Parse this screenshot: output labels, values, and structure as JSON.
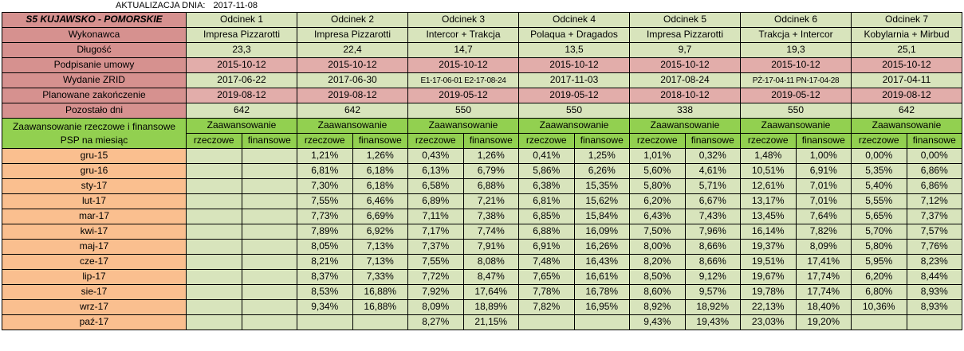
{
  "update_note": {
    "label": "AKTUALIZACJA DNIA:",
    "date": "2017-11-08"
  },
  "colors": {
    "rose": "#d6918f",
    "pink": "#e2adaa",
    "bright-green": "#92d050",
    "pale-green": "#d8e4bc",
    "peach": "#fabf8f",
    "border": "#000000"
  },
  "table": {
    "title": "S5 KUJAWSKO - POMORSKIE",
    "sections": [
      "Odcinek 1",
      "Odcinek 2",
      "Odcinek 3",
      "Odcinek 4",
      "Odcinek 5",
      "Odcinek 6",
      "Odcinek 7"
    ],
    "info_rows": [
      {
        "label": "Wykonawca",
        "style": "green",
        "values": [
          "Impresa Pizzarotti",
          "Impresa Pizzarotti",
          "Intercor + Trakcja",
          "Polaqua + Dragados",
          "Impresa Pizzarotti",
          "Trakcja + Intercor",
          "Kobylarnia + Mirbud"
        ]
      },
      {
        "label": "Długość",
        "style": "green",
        "values": [
          "23,3",
          "22,4",
          "14,7",
          "13,5",
          "9,7",
          "19,3",
          "25,1"
        ]
      },
      {
        "label": "Podpisanie umowy",
        "style": "pink",
        "values": [
          "2015-10-12",
          "2015-10-12",
          "2015-10-12",
          "2015-10-12",
          "2015-10-12",
          "2015-10-12",
          "2015-10-12"
        ]
      },
      {
        "label": "Wydanie ZRID",
        "style": "green",
        "values": [
          "2017-06-22",
          "2017-06-30",
          "E1-17-06-01 E2-17-08-24",
          "2017-11-03",
          "2017-08-24",
          "PŻ-17-04-11 PN-17-04-28",
          "2017-04-11"
        ]
      },
      {
        "label": "Planowane zakończenie",
        "style": "pink",
        "values": [
          "2019-08-12",
          "2019-08-12",
          "2019-05-12",
          "2019-05-12",
          "2018-10-12",
          "2019-05-12",
          "2019-08-12"
        ]
      },
      {
        "label": "Pozostało dni",
        "style": "green",
        "values": [
          "642",
          "642",
          "550",
          "550",
          "338",
          "550",
          "642"
        ]
      }
    ],
    "progress": {
      "label": "Zaawansowanie rzeczowe i finansowe PSP na miesiąc",
      "group_header": "Zaawansowanie",
      "sub_headers": [
        "rzeczowe",
        "finansowe"
      ],
      "months": [
        {
          "label": "gru-15",
          "values": [
            "",
            "",
            "1,21%",
            "1,26%",
            "0,43%",
            "1,26%",
            "0,41%",
            "1,25%",
            "1,01%",
            "0,32%",
            "1,48%",
            "1,00%",
            "0,00%",
            "0,00%"
          ]
        },
        {
          "label": "gru-16",
          "values": [
            "",
            "",
            "6,81%",
            "6,18%",
            "6,13%",
            "6,79%",
            "5,86%",
            "6,26%",
            "5,60%",
            "4,61%",
            "10,51%",
            "6,91%",
            "5,35%",
            "6,86%"
          ]
        },
        {
          "label": "sty-17",
          "values": [
            "",
            "",
            "7,30%",
            "6,18%",
            "6,58%",
            "6,88%",
            "6,38%",
            "15,35%",
            "5,80%",
            "5,71%",
            "12,61%",
            "7,01%",
            "5,40%",
            "6,86%"
          ]
        },
        {
          "label": "lut-17",
          "values": [
            "",
            "",
            "7,55%",
            "6,46%",
            "6,89%",
            "7,21%",
            "6,81%",
            "15,62%",
            "6,20%",
            "6,67%",
            "13,17%",
            "7,01%",
            "5,55%",
            "7,12%"
          ]
        },
        {
          "label": "mar-17",
          "values": [
            "",
            "",
            "7,73%",
            "6,69%",
            "7,11%",
            "7,38%",
            "6,85%",
            "15,84%",
            "6,43%",
            "7,43%",
            "13,45%",
            "7,64%",
            "5,65%",
            "7,37%"
          ]
        },
        {
          "label": "kwi-17",
          "values": [
            "",
            "",
            "7,89%",
            "6,92%",
            "7,17%",
            "7,74%",
            "6,88%",
            "16,09%",
            "7,50%",
            "7,96%",
            "16,14%",
            "7,82%",
            "5,70%",
            "7,57%"
          ]
        },
        {
          "label": "maj-17",
          "values": [
            "",
            "",
            "8,05%",
            "7,13%",
            "7,37%",
            "7,91%",
            "6,91%",
            "16,26%",
            "8,00%",
            "8,66%",
            "19,37%",
            "8,09%",
            "5,80%",
            "7,76%"
          ]
        },
        {
          "label": "cze-17",
          "values": [
            "",
            "",
            "8,21%",
            "7,13%",
            "7,55%",
            "8,08%",
            "7,48%",
            "16,43%",
            "8,20%",
            "8,66%",
            "19,51%",
            "17,41%",
            "5,95%",
            "8,23%"
          ]
        },
        {
          "label": "lip-17",
          "values": [
            "",
            "",
            "8,37%",
            "7,33%",
            "7,72%",
            "8,47%",
            "7,65%",
            "16,61%",
            "8,50%",
            "9,12%",
            "19,67%",
            "17,74%",
            "6,20%",
            "8,44%"
          ]
        },
        {
          "label": "sie-17",
          "values": [
            "",
            "",
            "8,53%",
            "16,88%",
            "7,92%",
            "17,64%",
            "7,78%",
            "16,78%",
            "8,60%",
            "9,57%",
            "19,78%",
            "17,74%",
            "6,80%",
            "8,93%"
          ]
        },
        {
          "label": "wrz-17",
          "values": [
            "",
            "",
            "9,34%",
            "16,88%",
            "8,09%",
            "18,89%",
            "7,82%",
            "16,95%",
            "8,92%",
            "18,92%",
            "22,13%",
            "18,40%",
            "10,36%",
            "8,93%"
          ]
        },
        {
          "label": "paź-17",
          "values": [
            "",
            "",
            "",
            "",
            "8,27%",
            "21,15%",
            "",
            "",
            "9,43%",
            "19,43%",
            "23,03%",
            "19,20%",
            "",
            ""
          ]
        }
      ]
    }
  }
}
